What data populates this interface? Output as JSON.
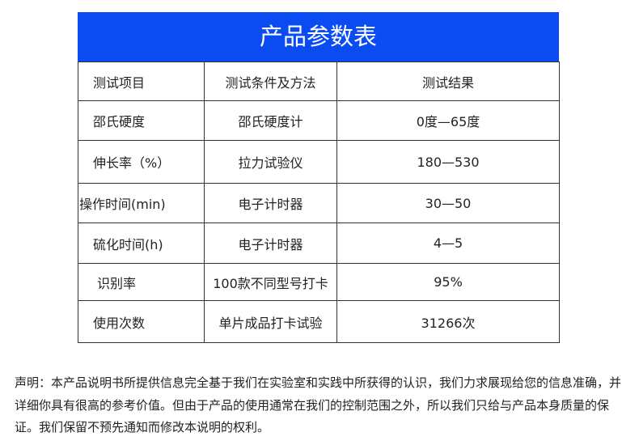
{
  "title": "产品参数表",
  "table": {
    "headers": [
      "测试项目",
      "测试条件及方法",
      "测试结果"
    ],
    "rows": [
      [
        "邵氏硬度",
        "邵氏硬度计",
        "0度—65度"
      ],
      [
        "伸长率（%）",
        "拉力试验仪",
        "180—530"
      ],
      [
        "操作时间(min)",
        "电子计时器",
        "30—50"
      ],
      [
        "硫化时间(h)",
        "电子计时器",
        "4—5"
      ],
      [
        "识别率",
        "100款不同型号打卡",
        "95%"
      ],
      [
        "使用次数",
        "单片成品打卡试验",
        "31266次"
      ]
    ]
  },
  "disclaimer": "声明：本产品说明书所提供信息完全基于我们在实验室和实践中所获得的认识，我们力求展现给您的信息准确，并详细你具有很高的参考价值。但由于产品的使用通常在我们的控制范围之外，所以我们只给与产品本身质量的保证。我们保留不预先通知而修改本说明的权利。",
  "colors": {
    "title_bar": "#0a4cf2"
  }
}
